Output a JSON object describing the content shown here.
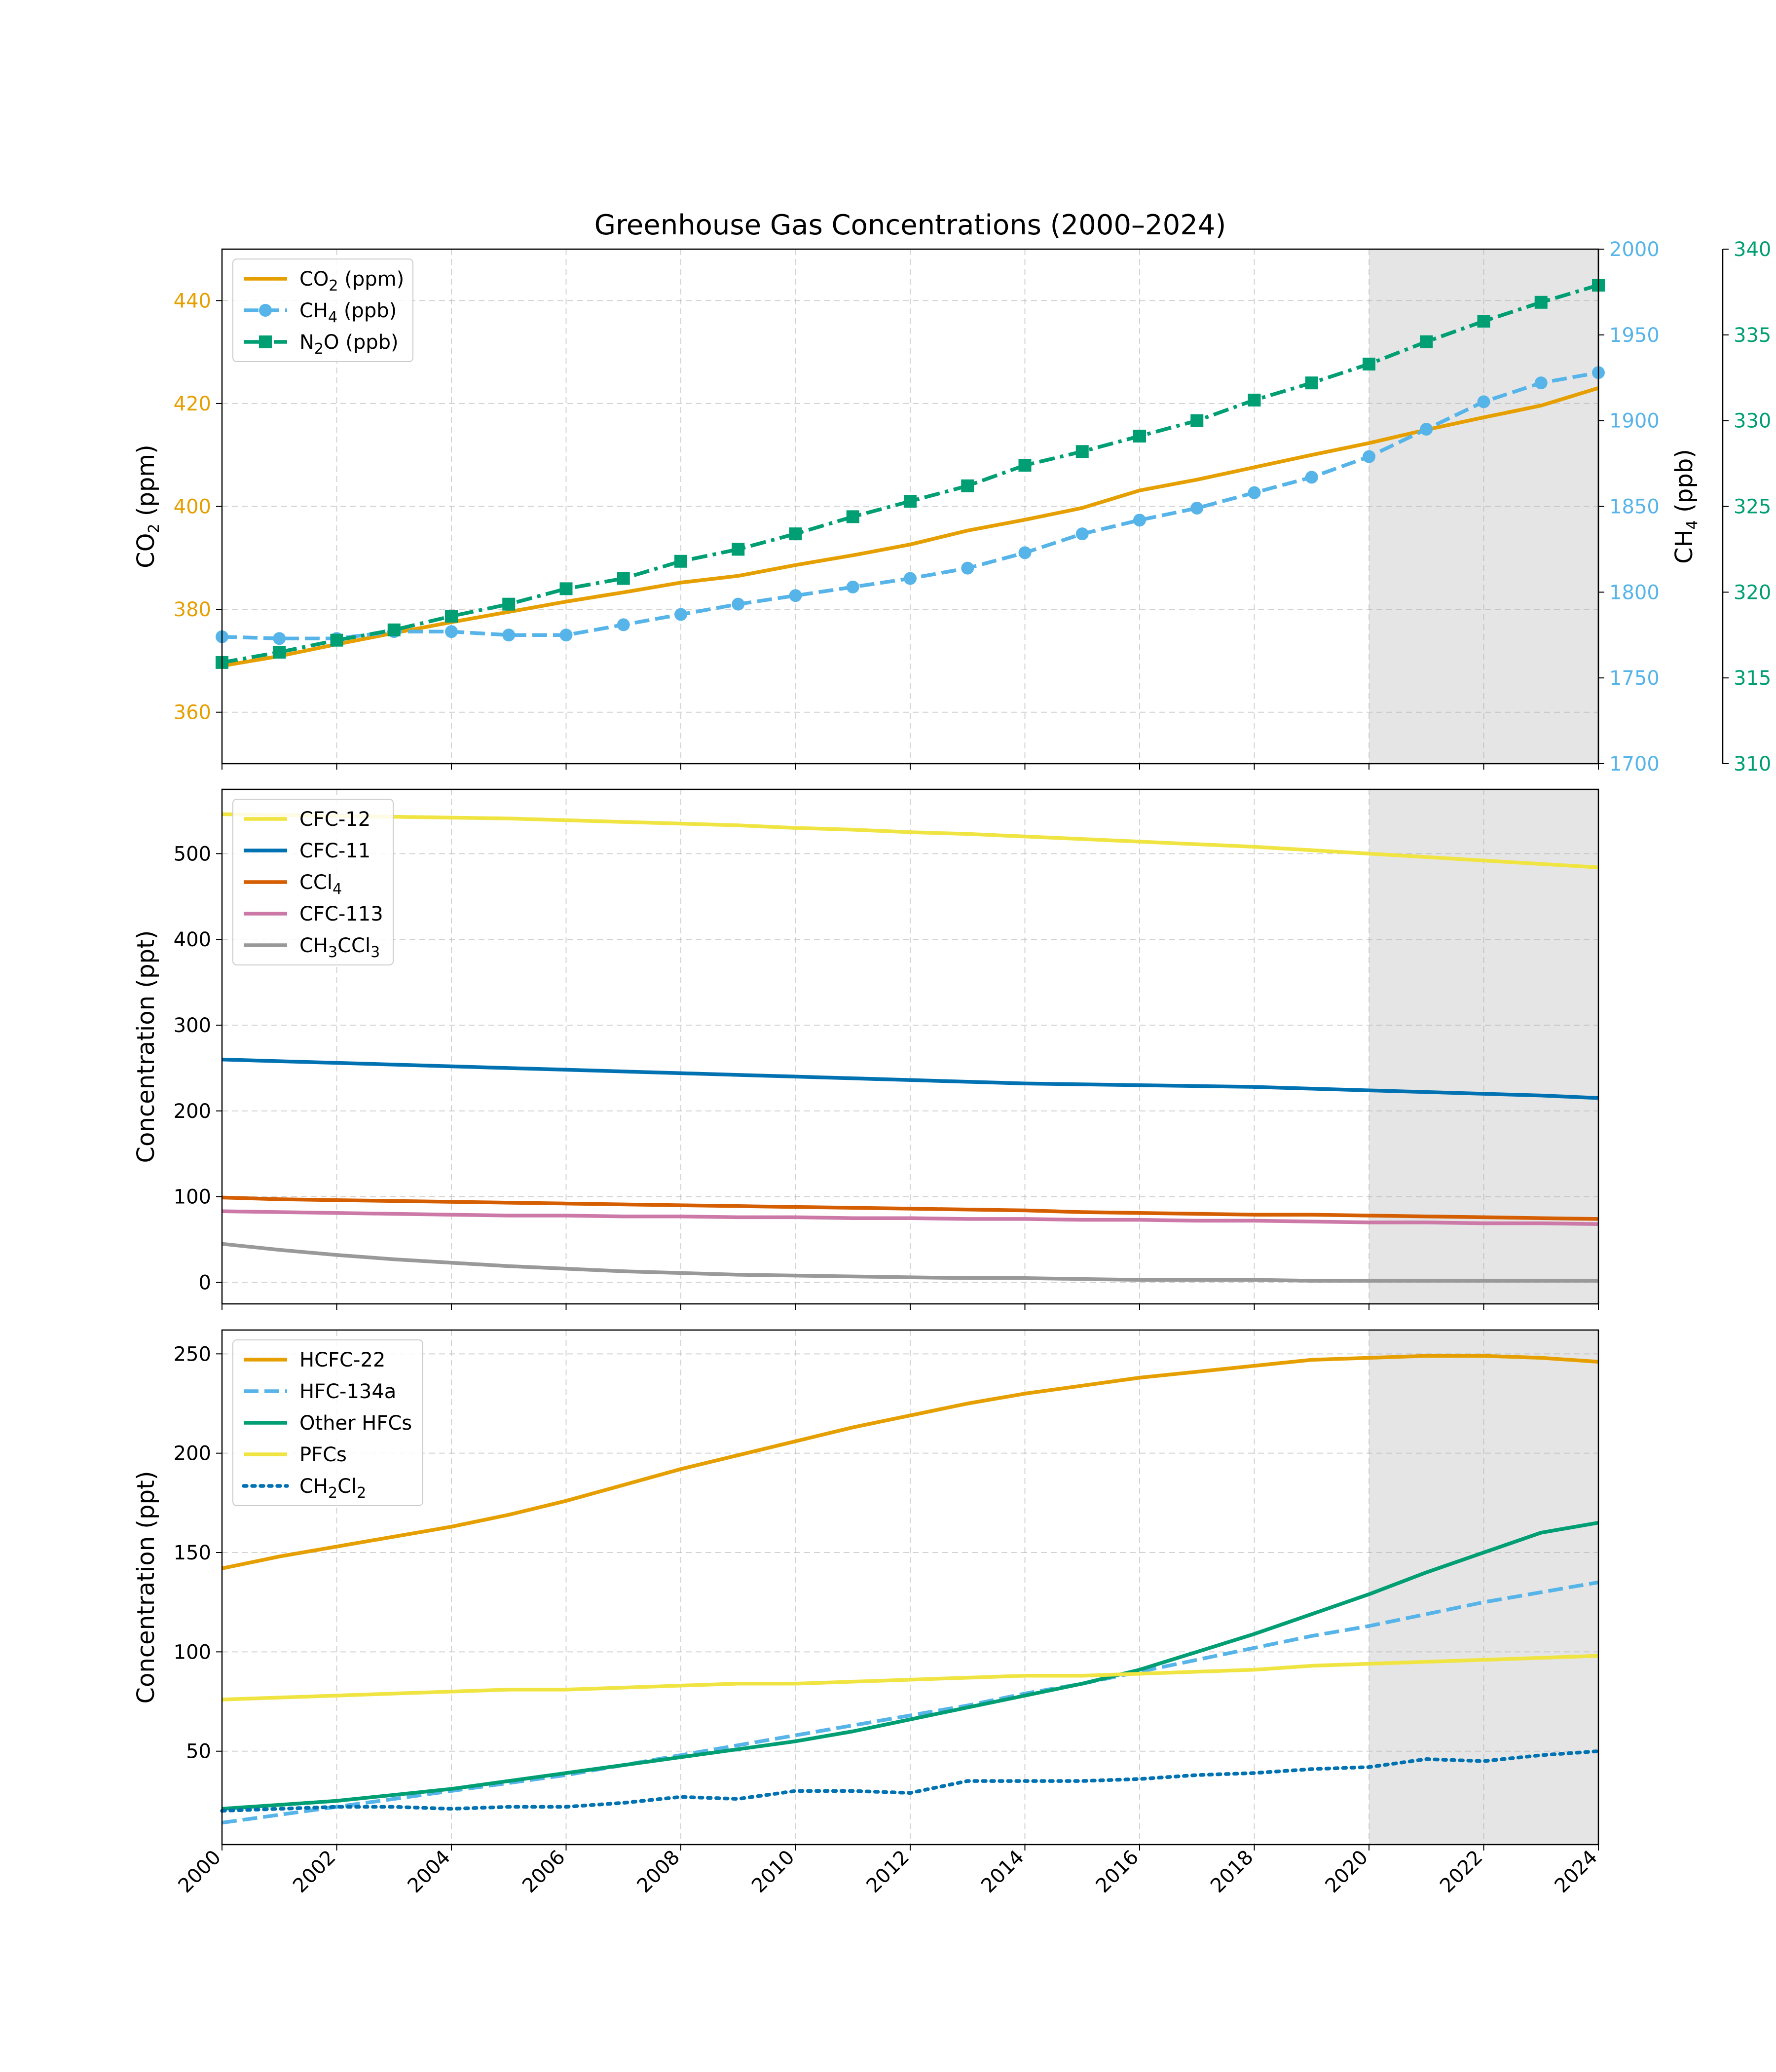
{
  "figure": {
    "title": "Greenhouse Gas Concentrations (2000–2024)",
    "x_ticks": [
      "2000",
      "2002",
      "2004",
      "2006",
      "2008",
      "2010",
      "2012",
      "2014",
      "2016",
      "2018",
      "2020",
      "2022",
      "2024"
    ],
    "highlight_region": {
      "x_start": 2020,
      "x_end": 2024,
      "color": "#e5e5e5"
    }
  },
  "chart_data": [
    {
      "type": "line",
      "panel": "top",
      "ylabel": "CO2 (ppm)",
      "ylabel_right": "CH4 (ppb)",
      "axes": {
        "left": {
          "label": "CO2 (ppm)",
          "lim": [
            350,
            450
          ],
          "ticks": [
            "360",
            "380",
            "400",
            "420",
            "440"
          ],
          "color": "#e69f00"
        },
        "right": {
          "label": "CH4 (ppb)",
          "lim": [
            1700,
            2000
          ],
          "ticks": [
            "1700",
            "1750",
            "1800",
            "1850",
            "1900",
            "1950",
            "2000"
          ],
          "color": "#56b4e9"
        },
        "far_right": {
          "label": "N2O (ppb)",
          "lim": [
            310,
            340
          ],
          "ticks": [
            "310",
            "315",
            "320",
            "325",
            "330",
            "335",
            "340"
          ],
          "color": "#009e73"
        }
      },
      "x": [
        2000,
        2001,
        2002,
        2003,
        2004,
        2005,
        2006,
        2007,
        2008,
        2009,
        2010,
        2011,
        2012,
        2013,
        2014,
        2015,
        2016,
        2017,
        2018,
        2019,
        2020,
        2021,
        2022,
        2023,
        2024
      ],
      "legend": {
        "placement": "upper-left",
        "items": [
          {
            "base": "CO",
            "sub": "2",
            "rest": " (ppm)"
          },
          {
            "base": "CH",
            "sub": "4",
            "rest": " (ppb)"
          },
          {
            "base": "N",
            "sub": "2",
            "rest": "O (ppb)"
          }
        ]
      },
      "series": [
        {
          "axis": "left",
          "color": "#e69f00",
          "dash": "solid",
          "marker": "none",
          "values": [
            369.0,
            370.9,
            373.2,
            375.4,
            377.5,
            379.5,
            381.5,
            383.3,
            385.2,
            386.5,
            388.6,
            390.5,
            392.6,
            395.3,
            397.4,
            399.7,
            403.1,
            405.2,
            407.6,
            410.0,
            412.3,
            414.9,
            417.3,
            419.6,
            423.0
          ]
        },
        {
          "axis": "right",
          "color": "#56b4e9",
          "dash": "dashed",
          "marker": "circle",
          "values": [
            1774,
            1773,
            1773,
            1777,
            1777,
            1775,
            1775,
            1781,
            1787,
            1793,
            1798,
            1803,
            1808,
            1814,
            1823,
            1834,
            1842,
            1849,
            1858,
            1867,
            1879,
            1895,
            1911,
            1922,
            1928
          ]
        },
        {
          "axis": "far_right",
          "color": "#009e73",
          "dash": "dashdot",
          "marker": "square",
          "values": [
            315.9,
            316.5,
            317.2,
            317.8,
            318.6,
            319.3,
            320.2,
            320.8,
            321.8,
            322.5,
            323.4,
            324.4,
            325.3,
            326.2,
            327.4,
            328.2,
            329.1,
            330.0,
            331.2,
            332.2,
            333.3,
            334.6,
            335.8,
            336.9,
            337.9
          ]
        }
      ]
    },
    {
      "type": "line",
      "panel": "middle",
      "ylabel": "Concentration (ppt)",
      "ylim": [
        -25,
        575
      ],
      "yticks": [
        "0",
        "100",
        "200",
        "300",
        "400",
        "500"
      ],
      "x": [
        2000,
        2001,
        2002,
        2003,
        2004,
        2005,
        2006,
        2007,
        2008,
        2009,
        2010,
        2011,
        2012,
        2013,
        2014,
        2015,
        2016,
        2017,
        2018,
        2019,
        2020,
        2021,
        2022,
        2023,
        2024
      ],
      "legend": {
        "placement": "upper-left",
        "items": [
          {
            "base": "CFC-12",
            "sub": "",
            "rest": ""
          },
          {
            "base": "CFC-11",
            "sub": "",
            "rest": ""
          },
          {
            "base": "CCl",
            "sub": "4",
            "rest": ""
          },
          {
            "base": "CFC-113",
            "sub": "",
            "rest": ""
          },
          {
            "base": "CH",
            "sub": "3",
            "rest": "CCl",
            "sub2": "3"
          }
        ]
      },
      "series": [
        {
          "color": "#f0e442",
          "dash": "solid",
          "values": [
            546,
            545,
            544,
            543,
            542,
            541,
            539,
            537,
            535,
            533,
            530,
            528,
            525,
            523,
            520,
            517,
            514,
            511,
            508,
            504,
            500,
            496,
            492,
            488,
            484
          ]
        },
        {
          "color": "#0072b2",
          "dash": "solid",
          "values": [
            260,
            258,
            256,
            254,
            252,
            250,
            248,
            246,
            244,
            242,
            240,
            238,
            236,
            234,
            232,
            231,
            230,
            229,
            228,
            226,
            224,
            222,
            220,
            218,
            215
          ]
        },
        {
          "color": "#d55e00",
          "dash": "solid",
          "values": [
            99,
            97,
            96,
            95,
            94,
            93,
            92,
            91,
            90,
            89,
            88,
            87,
            86,
            85,
            84,
            82,
            81,
            80,
            79,
            79,
            78,
            77,
            76,
            75,
            74
          ]
        },
        {
          "color": "#cc79a7",
          "dash": "solid",
          "values": [
            83,
            82,
            81,
            80,
            79,
            78,
            78,
            77,
            77,
            76,
            76,
            75,
            75,
            74,
            74,
            73,
            73,
            72,
            72,
            71,
            70,
            70,
            69,
            69,
            68
          ]
        },
        {
          "color": "#999999",
          "dash": "solid",
          "values": [
            45,
            38,
            32,
            27,
            23,
            19,
            16,
            13,
            11,
            9,
            8,
            7,
            6,
            5,
            5,
            4,
            3,
            3,
            3,
            2,
            2,
            2,
            2,
            2,
            2
          ]
        }
      ]
    },
    {
      "type": "line",
      "panel": "bottom",
      "ylabel": "Concentration (ppt)",
      "ylim": [
        3,
        262
      ],
      "yticks": [
        "50",
        "100",
        "150",
        "200",
        "250"
      ],
      "x": [
        2000,
        2001,
        2002,
        2003,
        2004,
        2005,
        2006,
        2007,
        2008,
        2009,
        2010,
        2011,
        2012,
        2013,
        2014,
        2015,
        2016,
        2017,
        2018,
        2019,
        2020,
        2021,
        2022,
        2023,
        2024
      ],
      "legend": {
        "placement": "upper-left",
        "items": [
          {
            "base": "HCFC-22",
            "sub": "",
            "rest": ""
          },
          {
            "base": "HFC-134a",
            "sub": "",
            "rest": ""
          },
          {
            "base": "Other HFCs",
            "sub": "",
            "rest": ""
          },
          {
            "base": "PFCs",
            "sub": "",
            "rest": ""
          },
          {
            "base": "CH",
            "sub": "2",
            "rest": "Cl",
            "sub2": "2"
          }
        ]
      },
      "series": [
        {
          "color": "#e69f00",
          "dash": "solid",
          "values": [
            142,
            148,
            153,
            158,
            163,
            169,
            176,
            184,
            192,
            199,
            206,
            213,
            219,
            225,
            230,
            234,
            238,
            241,
            244,
            247,
            248,
            249,
            249,
            248,
            246
          ]
        },
        {
          "color": "#56b4e9",
          "dash": "dashed",
          "values": [
            14,
            18,
            22,
            26,
            30,
            34,
            38,
            43,
            48,
            53,
            58,
            63,
            68,
            73,
            79,
            84,
            90,
            96,
            102,
            108,
            113,
            119,
            125,
            130,
            135
          ]
        },
        {
          "color": "#009e73",
          "dash": "solid",
          "values": [
            21,
            23,
            25,
            28,
            31,
            35,
            39,
            43,
            47,
            51,
            55,
            60,
            66,
            72,
            78,
            84,
            91,
            100,
            109,
            119,
            129,
            140,
            150,
            160,
            165
          ]
        },
        {
          "color": "#f0e442",
          "dash": "solid",
          "values": [
            76,
            77,
            78,
            79,
            80,
            81,
            81,
            82,
            83,
            84,
            84,
            85,
            86,
            87,
            88,
            88,
            89,
            90,
            91,
            93,
            94,
            95,
            96,
            97,
            98
          ]
        },
        {
          "color": "#0072b2",
          "dash": "dotted",
          "values": [
            20,
            21,
            22,
            22,
            21,
            22,
            22,
            24,
            27,
            26,
            30,
            30,
            29,
            35,
            35,
            35,
            36,
            38,
            39,
            41,
            42,
            46,
            45,
            48,
            50
          ]
        }
      ]
    }
  ]
}
